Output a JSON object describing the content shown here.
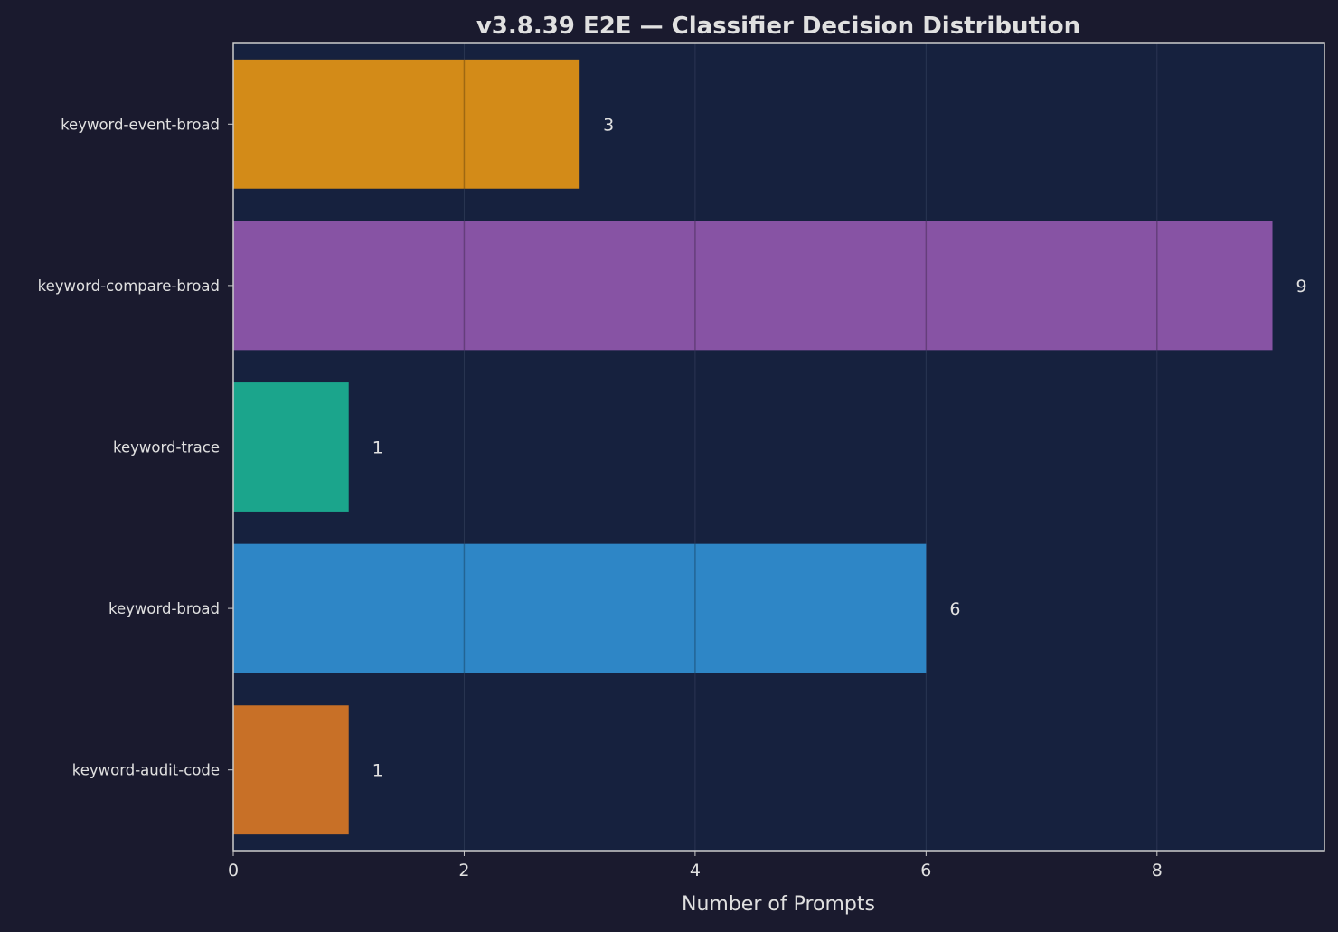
{
  "chart_data": {
    "type": "bar",
    "orientation": "horizontal",
    "title": "v3.8.39 E2E — Classifier Decision Distribution",
    "xlabel": "Number of Prompts",
    "ylabel": "",
    "categories": [
      "keyword-event-broad",
      "keyword-compare-broad",
      "keyword-trace",
      "keyword-broad",
      "keyword-audit-code"
    ],
    "values": [
      3,
      9,
      1,
      6,
      1
    ],
    "data_labels": [
      "3",
      "9",
      "1",
      "6",
      "1"
    ],
    "colors": [
      "#d38b18",
      "#8753a4",
      "#1ba58c",
      "#2e86c6",
      "#c87027"
    ],
    "xlim": [
      0,
      9.45
    ],
    "xticks": [
      0,
      2,
      4,
      6,
      8
    ],
    "xtick_labels": [
      "0",
      "2",
      "4",
      "6",
      "8"
    ],
    "grid": true,
    "theme": {
      "background": "#1a1a2e",
      "axes_background": "#16213e",
      "text": "#e0e0e0"
    }
  }
}
